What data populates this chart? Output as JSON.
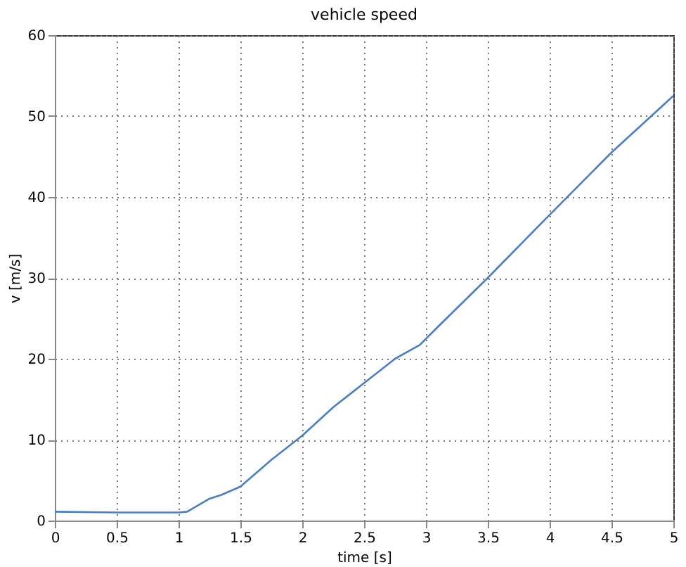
{
  "chart_data": {
    "type": "line",
    "title": "vehicle speed",
    "xlabel": "time [s]",
    "ylabel": "v [m/s]",
    "x": [
      0,
      0.5,
      1,
      1.07,
      1.25,
      1.35,
      1.5,
      1.75,
      2,
      2.25,
      2.5,
      2.75,
      2.95,
      3.1,
      3.5,
      4,
      4.5,
      4.75,
      5
    ],
    "series": [
      {
        "color": "#4a7fc1",
        "values": [
          1.1,
          1.0,
          1.0,
          1.1,
          2.7,
          3.2,
          4.2,
          7.5,
          10.5,
          14,
          17,
          20,
          21.7,
          24,
          30,
          37.8,
          45.5,
          49,
          52.5
        ]
      }
    ],
    "xlim": [
      0,
      5
    ],
    "ylim": [
      0,
      60
    ],
    "xticks": [
      0,
      0.5,
      1,
      1.5,
      2,
      2.5,
      3,
      3.5,
      4,
      4.5,
      5
    ],
    "yticks": [
      0,
      10,
      20,
      30,
      40,
      50,
      60
    ],
    "grid": true,
    "line_style": "solid",
    "marker": "none"
  }
}
